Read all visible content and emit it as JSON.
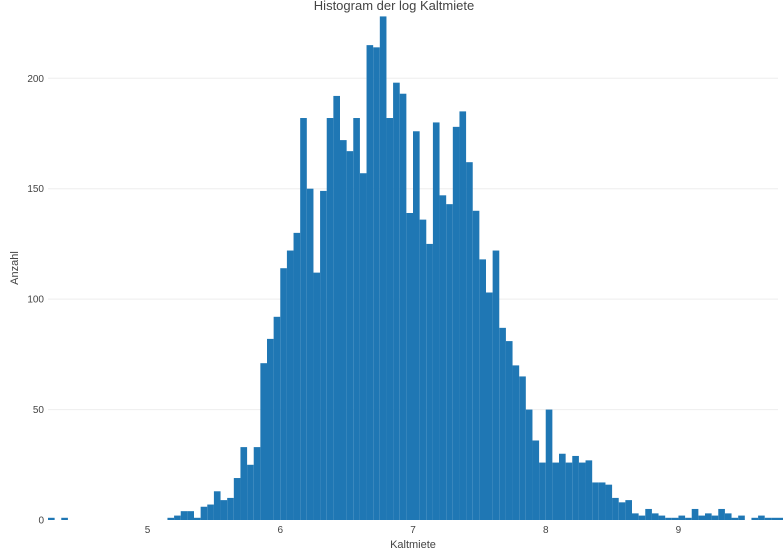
{
  "chart_data": {
    "type": "bar",
    "title": "Histogram der log Kaltmiete",
    "xlabel": "Kaltmiete",
    "ylabel": "Anzahl",
    "xlim": [
      4.25,
      9.75
    ],
    "ylim": [
      0,
      230
    ],
    "x_ticks": [
      5,
      6,
      7,
      8,
      9
    ],
    "x_tick_labels": [
      "5",
      "6",
      "7",
      "8",
      "9"
    ],
    "y_ticks": [
      0,
      50,
      100,
      150,
      200
    ],
    "y_tick_labels": [
      "0",
      "50",
      "100",
      "150",
      "200"
    ],
    "grid": true,
    "bins": {
      "start": 4.25,
      "width": 0.05,
      "counts": [
        1,
        0,
        1,
        0,
        0,
        0,
        0,
        0,
        0,
        0,
        0,
        0,
        0,
        0,
        0,
        0,
        0,
        0,
        1,
        2,
        4,
        4,
        1,
        6,
        7,
        13,
        9,
        10,
        19,
        33,
        25,
        33,
        71,
        82,
        92,
        114,
        122,
        130,
        182,
        150,
        112,
        149,
        182,
        192,
        172,
        167,
        182,
        157,
        215,
        214,
        228,
        182,
        198,
        193,
        139,
        176,
        136,
        125,
        180,
        147,
        143,
        178,
        185,
        162,
        140,
        118,
        103,
        122,
        87,
        81,
        70,
        65,
        50,
        36,
        26,
        50,
        26,
        30,
        26,
        29,
        26,
        27,
        17,
        17,
        16,
        10,
        8,
        9,
        3,
        2,
        5,
        3,
        2,
        1,
        1,
        2,
        1,
        5,
        2,
        3,
        2,
        5,
        3,
        1,
        2,
        0,
        1,
        2,
        1,
        1,
        1,
        0,
        0,
        2,
        1,
        0,
        0,
        0
      ]
    }
  }
}
